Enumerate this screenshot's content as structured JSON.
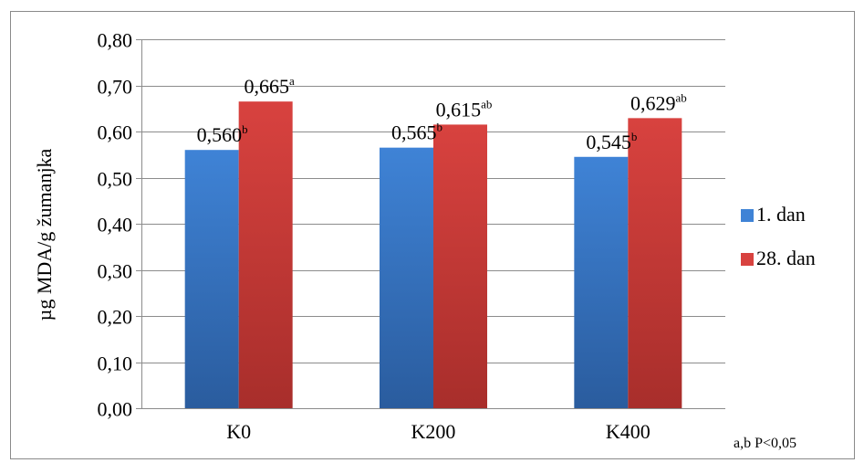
{
  "chart_data": {
    "type": "bar",
    "categories": [
      "K0",
      "K200",
      "K400"
    ],
    "series": [
      {
        "name": "1. dan",
        "values": [
          0.56,
          0.565,
          0.545
        ],
        "labels": [
          "0,560",
          "0,565",
          "0,545"
        ],
        "superscripts": [
          "b",
          "b",
          "b"
        ],
        "color_light": "#3f83d6",
        "color_dark": "#2a5c9e"
      },
      {
        "name": "28. dan",
        "values": [
          0.665,
          0.615,
          0.629
        ],
        "labels": [
          "0,665",
          "0,615",
          "0,629"
        ],
        "superscripts": [
          "a",
          "ab",
          "ab"
        ],
        "color_light": "#d8423f",
        "color_dark": "#a82e2b"
      }
    ],
    "title": "",
    "xlabel": "",
    "ylabel": "µg MDA/g žumanjka",
    "ylim": [
      0,
      0.8
    ],
    "yticks": [
      0,
      0.1,
      0.2,
      0.3,
      0.4,
      0.5,
      0.6,
      0.7,
      0.8
    ],
    "ytick_labels": [
      "0,00",
      "0,10",
      "0,20",
      "0,30",
      "0,40",
      "0,50",
      "0,60",
      "0,70",
      "0,80"
    ],
    "grid": true,
    "legend_position": "right",
    "footnote": "a,b P<0,05"
  }
}
